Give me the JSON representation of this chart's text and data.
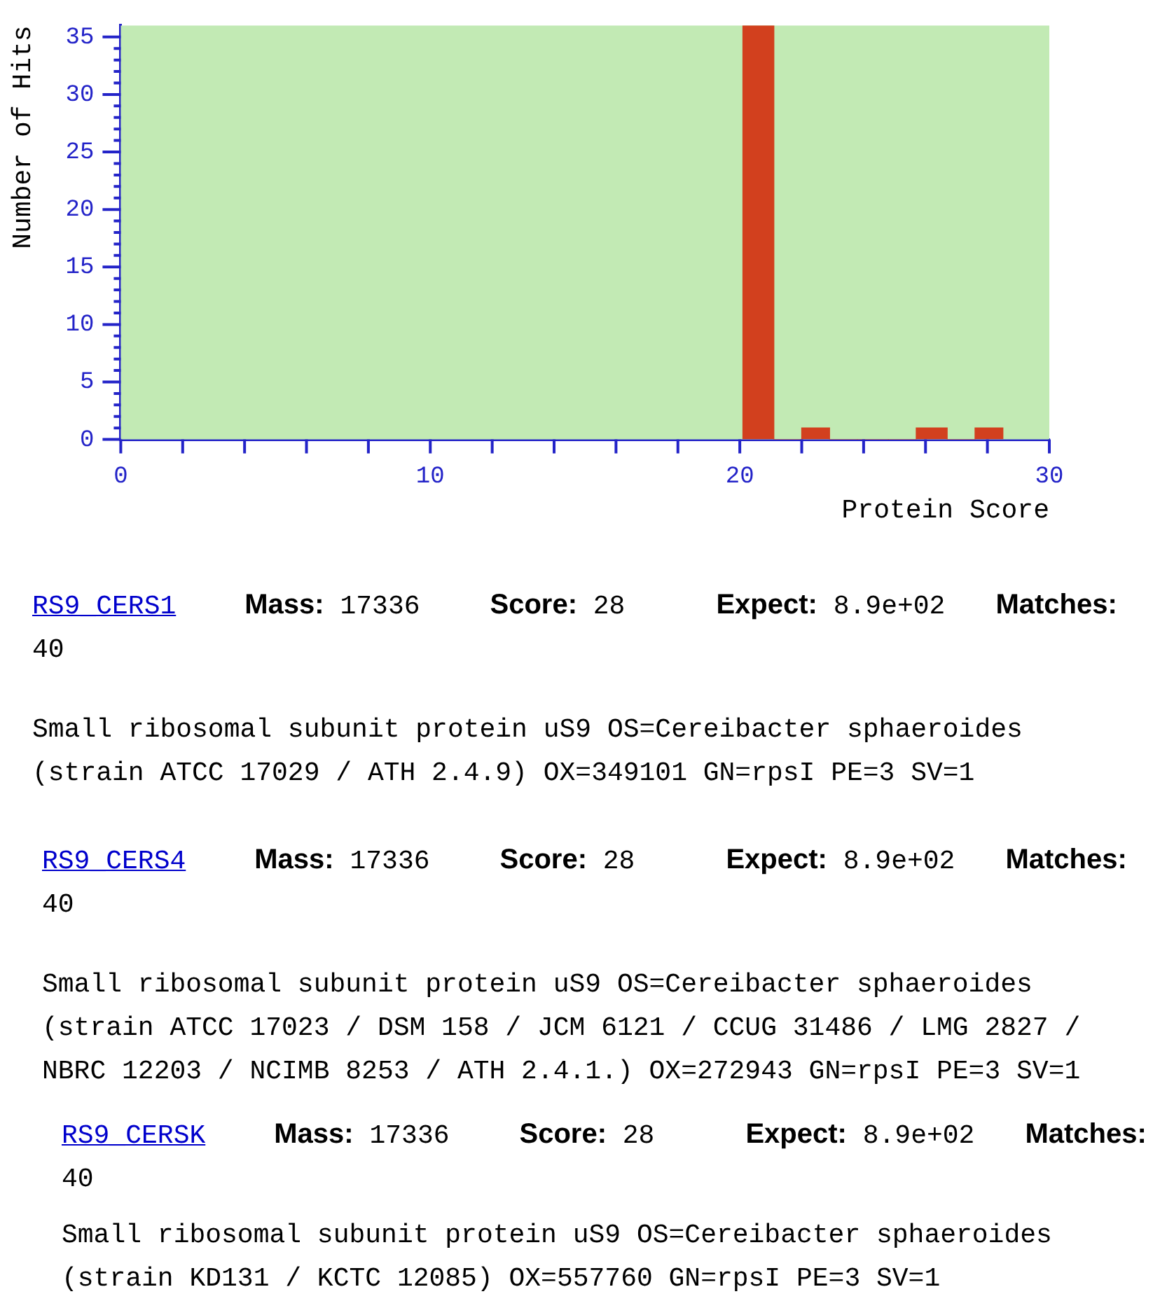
{
  "chart_data": {
    "type": "histogram",
    "xlabel": "Protein Score",
    "ylabel": "Number of Hits",
    "bins": [
      20.1,
      21.1,
      22.0,
      22.9,
      23.8,
      24.8,
      25.7,
      26.7,
      27.6,
      28.5
    ],
    "values": [
      36,
      0,
      1,
      0,
      0,
      0,
      1,
      0,
      1
    ],
    "color": "#d2401e",
    "xlim": [
      0,
      30
    ],
    "xticks": [
      0,
      {
        "value": 2,
        "label": null
      },
      {
        "value": 4,
        "label": null
      },
      {
        "value": 6,
        "label": null
      },
      {
        "value": 8,
        "label": null
      },
      10,
      {
        "value": 12,
        "label": null
      },
      {
        "value": 14,
        "label": null
      },
      {
        "value": 16,
        "label": null
      },
      {
        "value": 18,
        "label": null
      },
      20,
      {
        "value": 22,
        "label": null
      },
      {
        "value": 24,
        "label": null
      },
      {
        "value": 26,
        "label": null
      },
      {
        "value": 28,
        "label": null
      },
      30
    ],
    "ylim": [
      0,
      36
    ],
    "yticks": [
      0,
      {
        "value": 1,
        "label": null
      },
      {
        "value": 2,
        "label": null
      },
      {
        "value": 3,
        "label": null
      },
      {
        "value": 4,
        "label": null
      },
      5,
      {
        "value": 6,
        "label": null
      },
      {
        "value": 7,
        "label": null
      },
      {
        "value": 8,
        "label": null
      },
      {
        "value": 9,
        "label": null
      },
      10,
      {
        "value": 11,
        "label": null
      },
      {
        "value": 12,
        "label": null
      },
      {
        "value": 13,
        "label": null
      },
      {
        "value": 14,
        "label": null
      },
      15,
      {
        "value": 16,
        "label": null
      },
      {
        "value": 17,
        "label": null
      },
      {
        "value": 18,
        "label": null
      },
      {
        "value": 19,
        "label": null
      },
      20,
      {
        "value": 21,
        "label": null
      },
      {
        "value": 22,
        "label": null
      },
      {
        "value": 23,
        "label": null
      },
      {
        "value": 24,
        "label": null
      },
      25,
      {
        "value": 26,
        "label": null
      },
      {
        "value": 27,
        "label": null
      },
      {
        "value": 28,
        "label": null
      },
      {
        "value": 29,
        "label": null
      },
      30,
      {
        "value": 31,
        "label": null
      },
      {
        "value": 32,
        "label": null
      },
      {
        "value": 33,
        "label": null
      },
      {
        "value": 34,
        "label": null
      },
      35
    ],
    "bands": [
      {
        "axis": "x",
        "from": 0,
        "to": 30,
        "color": "#c2eab4"
      }
    ],
    "annotations": [
      "RS9_CERS1",
      "Mass: 17336",
      "Score: 28",
      "Expect: 8.9e+02",
      "Matches:",
      "40",
      "Small ribosomal subunit protein uS9 OS=Cereibacter sphaeroides (strain ATCC 17029 / ATH 2.4.9) OX=349101 GN=rpsI PE=3 SV=1",
      "RS9_CERS4",
      "Mass: 17336",
      "Score: 28",
      "Expect: 8.9e+02",
      "Matches:",
      "40",
      "Small ribosomal subunit protein uS9 OS=Cereibacter sphaeroides (strain ATCC 17023 / DSM 158 / JCM 6121 / CCUG 31486 / LMG 2827 / NBRC 12203 / NCIMB 8253 / ATH 2.4.1.) OX=272943 GN=rpsI PE=3 SV=1",
      "RS9_CERSK",
      "Mass: 17336",
      "Score: 28",
      "Expect: 8.9e+02",
      "Matches:",
      "40",
      "Small ribosomal subunit protein uS9 OS=Cereibacter sphaeroides (strain KD131 / KCTC 12085) OX=557760 GN=rpsI PE=3 SV=1"
    ]
  }
}
